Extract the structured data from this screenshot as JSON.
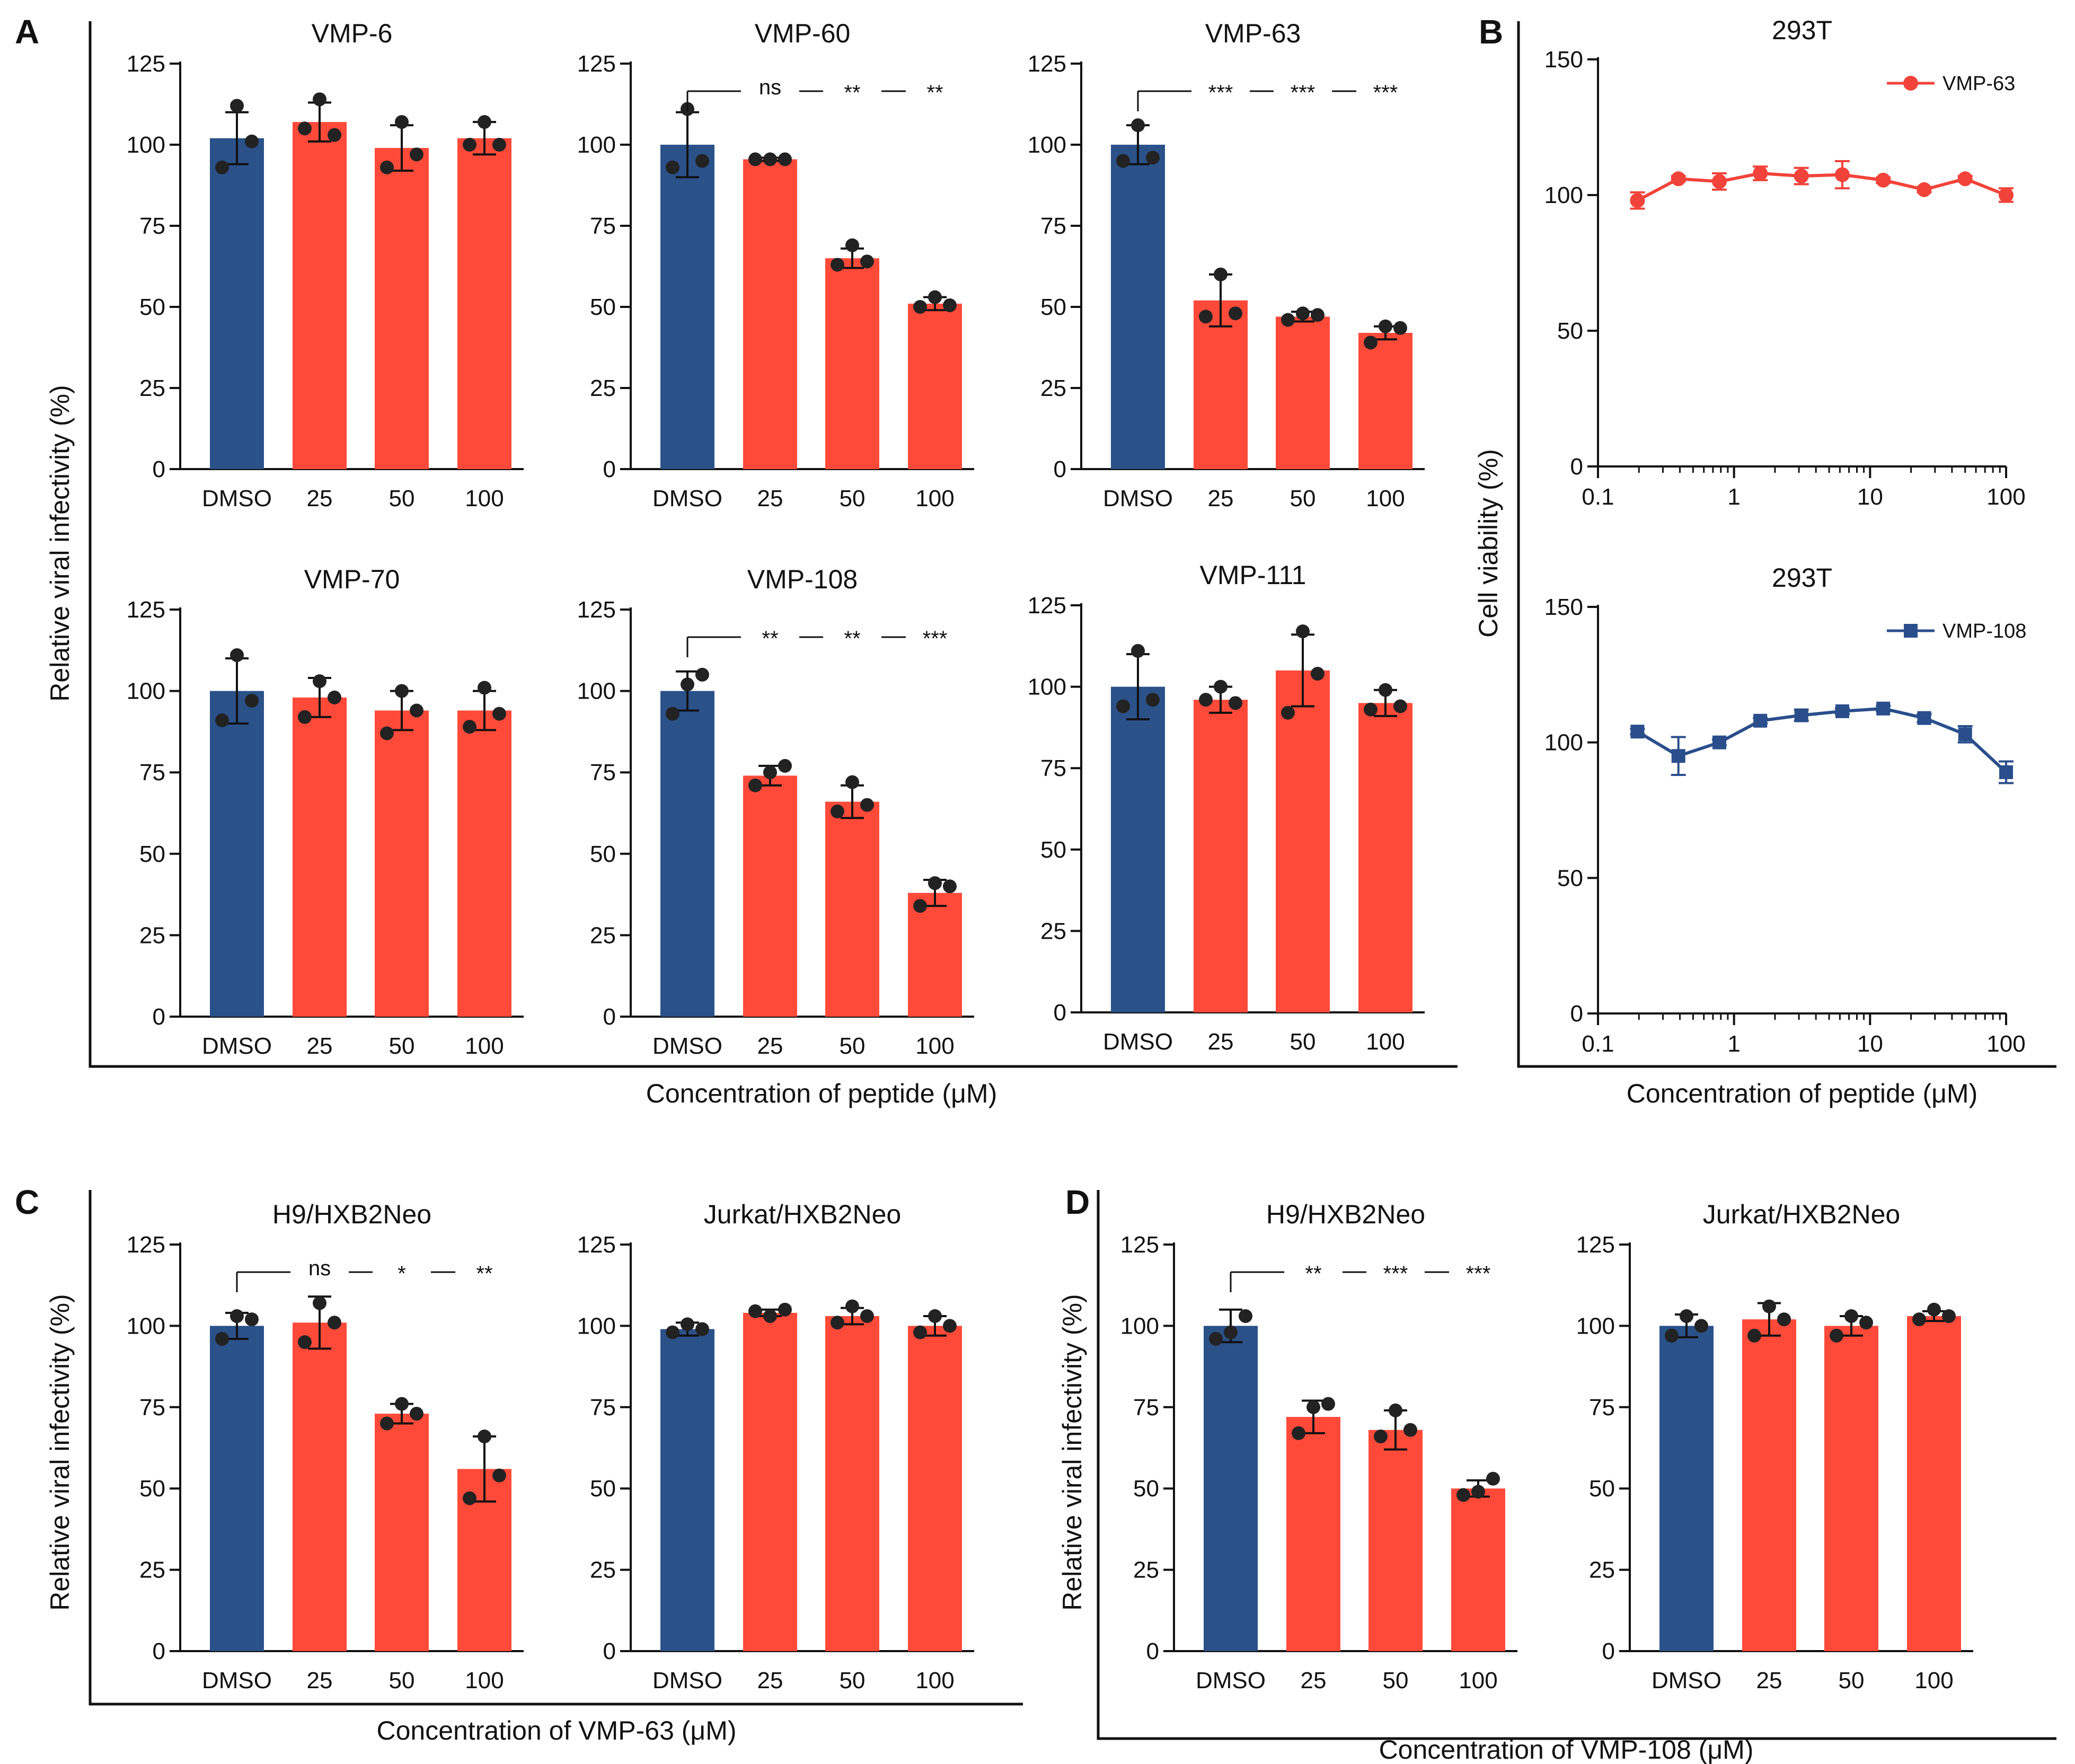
{
  "colors": {
    "control": "#2B5189",
    "treated": "#FF4A3A",
    "line_vmp63": "#F2433A",
    "line_vmp108": "#2A4E8C",
    "axis": "#111111",
    "dot": "#222222"
  },
  "panel_labels": [
    "A",
    "B",
    "C",
    "D"
  ],
  "axis_labels": {
    "A_y": "Relative viral infectivity (%)",
    "A_x": "Concentration of peptide (μM)",
    "B_y": "Cell viability (%)",
    "B_x": "Concentration of peptide (μM)",
    "C_y": "Relative viral infectivity (%)",
    "C_x": "Concentration of VMP-63 (μM)",
    "D_y": "Relative viral infectivity (%)",
    "D_x": "Concentration of VMP-108 (μM)"
  },
  "chart_data": [
    {
      "id": "A1",
      "type": "bar",
      "title": "VMP-6",
      "categories": [
        "DMSO",
        "25",
        "50",
        "100"
      ],
      "values": [
        102,
        107,
        99,
        102
      ],
      "errors": [
        8,
        6,
        7,
        5
      ],
      "points": [
        [
          112,
          93,
          101
        ],
        [
          114,
          105,
          103
        ],
        [
          107,
          93,
          97
        ],
        [
          107,
          100,
          100
        ]
      ],
      "ylim": [
        0,
        125
      ],
      "yticks": [
        0,
        25,
        50,
        75,
        100,
        125
      ],
      "significance": []
    },
    {
      "id": "A2",
      "type": "bar",
      "title": "VMP-60",
      "categories": [
        "DMSO",
        "25",
        "50",
        "100"
      ],
      "values": [
        100,
        95.5,
        65,
        51
      ],
      "errors": [
        10,
        0.5,
        3,
        2
      ],
      "points": [
        [
          111,
          93,
          95
        ],
        [
          95.5,
          95.5,
          95.5
        ],
        [
          69,
          63,
          64
        ],
        [
          53,
          50,
          50.5
        ]
      ],
      "ylim": [
        0,
        125
      ],
      "yticks": [
        0,
        25,
        50,
        75,
        100,
        125
      ],
      "significance": [
        "ns",
        "**",
        "**"
      ]
    },
    {
      "id": "A3",
      "type": "bar",
      "title": "VMP-63",
      "categories": [
        "DMSO",
        "25",
        "50",
        "100"
      ],
      "values": [
        100,
        52,
        47,
        42
      ],
      "errors": [
        6,
        8,
        1.5,
        2
      ],
      "points": [
        [
          106,
          95,
          96
        ],
        [
          60,
          47,
          48
        ],
        [
          48,
          46,
          47.5
        ],
        [
          44,
          39,
          43.5
        ]
      ],
      "ylim": [
        0,
        125
      ],
      "yticks": [
        0,
        25,
        50,
        75,
        100,
        125
      ],
      "significance": [
        "***",
        "***",
        "***"
      ]
    },
    {
      "id": "A4",
      "type": "bar",
      "title": "VMP-70",
      "categories": [
        "DMSO",
        "25",
        "50",
        "100"
      ],
      "values": [
        100,
        98,
        94,
        94
      ],
      "errors": [
        10,
        6,
        6,
        6
      ],
      "points": [
        [
          111,
          91,
          97
        ],
        [
          103,
          92,
          98
        ],
        [
          100,
          87,
          94
        ],
        [
          101,
          89,
          93
        ]
      ],
      "ylim": [
        0,
        125
      ],
      "yticks": [
        0,
        25,
        50,
        75,
        100,
        125
      ],
      "significance": []
    },
    {
      "id": "A5",
      "type": "bar",
      "title": "VMP-108",
      "categories": [
        "DMSO",
        "25",
        "50",
        "100"
      ],
      "values": [
        100,
        74,
        66,
        38
      ],
      "errors": [
        6,
        3,
        5,
        4
      ],
      "points": [
        [
          102,
          93,
          105
        ],
        [
          75,
          71,
          77
        ],
        [
          72,
          63,
          65
        ],
        [
          41,
          34,
          40
        ]
      ],
      "ylim": [
        0,
        125
      ],
      "yticks": [
        0,
        25,
        50,
        75,
        100,
        125
      ],
      "significance": [
        "**",
        "**",
        "***"
      ]
    },
    {
      "id": "A6",
      "type": "bar",
      "title": "VMP-111",
      "categories": [
        "DMSO",
        "25",
        "50",
        "100"
      ],
      "values": [
        100,
        96,
        105,
        95
      ],
      "errors": [
        10,
        4,
        11,
        4
      ],
      "points": [
        [
          111,
          94,
          96
        ],
        [
          100,
          96,
          95
        ],
        [
          117,
          92,
          104
        ],
        [
          99,
          93,
          94
        ]
      ],
      "ylim": [
        0,
        125
      ],
      "yticks": [
        0,
        25,
        50,
        75,
        100,
        125
      ],
      "significance": []
    },
    {
      "id": "B1",
      "type": "line",
      "title": "293T",
      "series": [
        {
          "name": "VMP-63",
          "x": [
            0.195,
            0.39,
            0.78,
            1.56,
            3.125,
            6.25,
            12.5,
            25,
            50,
            100
          ],
          "values": [
            98,
            106,
            105,
            108,
            107,
            107.5,
            105.5,
            102,
            106,
            100
          ],
          "errors": [
            3,
            1,
            3,
            2.5,
            3,
            5,
            1,
            1,
            1,
            2.5
          ]
        }
      ],
      "xscale": "log",
      "xticks": [
        "0.1",
        "1",
        "10",
        "100"
      ],
      "ylim": [
        0,
        150
      ],
      "yticks": [
        0,
        50,
        100,
        150
      ],
      "legend": "top-right"
    },
    {
      "id": "B2",
      "type": "line",
      "title": "293T",
      "series": [
        {
          "name": "VMP-108",
          "x": [
            0.195,
            0.39,
            0.78,
            1.56,
            3.125,
            6.25,
            12.5,
            25,
            50,
            100
          ],
          "values": [
            104,
            95,
            100,
            108,
            110,
            111.5,
            112.5,
            109,
            103,
            89
          ],
          "errors": [
            1,
            7,
            1,
            1,
            2,
            1,
            1,
            1.5,
            3,
            4
          ]
        }
      ],
      "xscale": "log",
      "xticks": [
        "0.1",
        "1",
        "10",
        "100"
      ],
      "ylim": [
        0,
        150
      ],
      "yticks": [
        0,
        50,
        100,
        150
      ],
      "legend": "top-right"
    },
    {
      "id": "C1",
      "type": "bar",
      "title": "H9/HXB2Neo",
      "categories": [
        "DMSO",
        "25",
        "50",
        "100"
      ],
      "values": [
        100,
        101,
        73,
        56
      ],
      "errors": [
        4,
        8,
        3,
        10
      ],
      "points": [
        [
          103,
          96,
          102
        ],
        [
          107,
          95,
          101
        ],
        [
          76,
          70,
          73
        ],
        [
          66,
          47,
          54
        ]
      ],
      "ylim": [
        0,
        125
      ],
      "yticks": [
        0,
        25,
        50,
        75,
        100,
        125
      ],
      "significance": [
        "ns",
        "*",
        "**"
      ]
    },
    {
      "id": "C2",
      "type": "bar",
      "title": "Jurkat/HXB2Neo",
      "categories": [
        "DMSO",
        "25",
        "50",
        "100"
      ],
      "values": [
        99,
        104,
        103,
        100
      ],
      "errors": [
        2,
        1,
        2.5,
        3
      ],
      "points": [
        [
          100.5,
          98,
          99
        ],
        [
          103,
          104.5,
          105
        ],
        [
          106,
          101,
          103
        ],
        [
          103,
          98,
          100
        ]
      ],
      "ylim": [
        0,
        125
      ],
      "yticks": [
        0,
        25,
        50,
        75,
        100,
        125
      ],
      "significance": []
    },
    {
      "id": "D1",
      "type": "bar",
      "title": "H9/HXB2Neo",
      "categories": [
        "DMSO",
        "25",
        "50",
        "100"
      ],
      "values": [
        100,
        72,
        68,
        50
      ],
      "errors": [
        5,
        5,
        6,
        2.5
      ],
      "points": [
        [
          98,
          96,
          103
        ],
        [
          75,
          67,
          76
        ],
        [
          74,
          66,
          68
        ],
        [
          49,
          48,
          53
        ]
      ],
      "ylim": [
        0,
        125
      ],
      "yticks": [
        0,
        25,
        50,
        75,
        100,
        125
      ],
      "significance": [
        "**",
        "***",
        "***"
      ]
    },
    {
      "id": "D2",
      "type": "bar",
      "title": "Jurkat/HXB2Neo",
      "categories": [
        "DMSO",
        "25",
        "50",
        "100"
      ],
      "values": [
        100,
        102,
        100,
        103
      ],
      "errors": [
        3.5,
        5,
        3,
        1.5
      ],
      "points": [
        [
          103,
          97,
          100
        ],
        [
          106,
          97,
          102
        ],
        [
          103,
          97,
          101
        ],
        [
          105,
          102,
          103
        ]
      ],
      "ylim": [
        0,
        125
      ],
      "yticks": [
        0,
        25,
        50,
        75,
        100,
        125
      ],
      "significance": []
    }
  ]
}
